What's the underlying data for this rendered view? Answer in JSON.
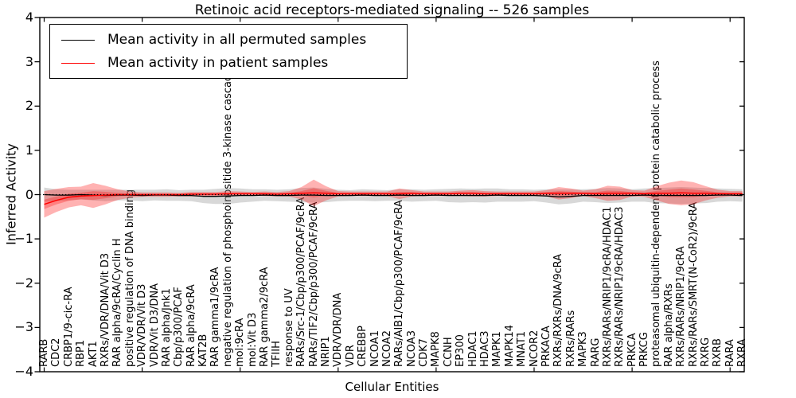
{
  "chart_data": {
    "type": "line",
    "title": "Retinoic acid receptors-mediated signaling -- 526 samples",
    "xlabel": "Cellular Entities",
    "ylabel": "Inferred Activity",
    "ylim": [
      -4,
      4
    ],
    "yticks": [
      4,
      3,
      2,
      1,
      0,
      -1,
      -2,
      -3,
      -4
    ],
    "grid": false,
    "legend_position": "upper left",
    "zero_line": {
      "value": 0,
      "style": "dotted",
      "color": "#000000"
    },
    "entities": [
      "RARB",
      "CDC2",
      "CRBP1/9-cic-RA",
      "RBP1",
      "AKT1",
      "RXRs/VDR/DNA/Vit D3",
      "RAR alpha/9cRA/Cyclin H",
      "positive regulation of DNA binding",
      "VDR/VDR/Vit D3",
      "VDR/Vit D3/DNA",
      "RAR alpha/Jnk1",
      "Cbp/p300/PCAF",
      "RAR alpha/9cRA",
      "KAT2B",
      "RAR gamma1/9cRA",
      "negative regulation of phosphoinositide 3-kinase cascade",
      "mol:9cRA",
      "mol:Vit D3",
      "RAR gamma2/9cRA",
      "TFIIH",
      "response to UV",
      "RARs/Src-1/Cbp/p300/PCAF/9cRA",
      "RARs/TIF2/Cbp/p300/PCAF/9cRA",
      "NRIP1",
      "VDR/VDR/DNA",
      "VDR",
      "CREBBP",
      "NCOA1",
      "NCOA2",
      "RARs/AIB1/Cbp/p300/PCAF/9cRA",
      "NCOA3",
      "CDK7",
      "MAPK8",
      "CCNH",
      "EP300",
      "HDAC1",
      "HDAC3",
      "MAPK1",
      "MAPK14",
      "MNAT1",
      "NCOR2",
      "PRKACA",
      "RXRs/RXRs/DNA/9cRA",
      "RXRs/RARs",
      "MAPK3",
      "RARG",
      "RXRs/RARs/NRIP1/9cRA/HDAC1",
      "RXRs/RARs/NRIP1/9cRA/HDAC3",
      "PRKCA",
      "PRKCG",
      "proteasomal ubiquitin-dependent protein catabolic process",
      "RAR alpha/RXRs",
      "RXRs/RARs/NRIP1/9cRA",
      "RXRs/RARs/SMRT(N-CoR2)/9cRA",
      "RXRG",
      "RXRB",
      "RARA",
      "RXRA"
    ],
    "series": [
      {
        "name": "Mean activity in all permuted samples",
        "color": "#000000",
        "band_color": "#999999",
        "mean": [
          0.0,
          -0.01,
          -0.01,
          0.0,
          -0.01,
          -0.02,
          -0.01,
          -0.01,
          -0.02,
          -0.01,
          -0.01,
          -0.02,
          -0.02,
          -0.04,
          -0.04,
          -0.03,
          -0.02,
          -0.02,
          -0.01,
          -0.02,
          -0.02,
          -0.01,
          -0.01,
          -0.02,
          -0.02,
          -0.02,
          -0.01,
          -0.02,
          -0.02,
          -0.01,
          -0.02,
          -0.02,
          -0.01,
          -0.02,
          -0.02,
          -0.02,
          -0.02,
          -0.01,
          -0.02,
          -0.02,
          -0.02,
          -0.03,
          -0.05,
          -0.04,
          -0.02,
          -0.02,
          -0.02,
          -0.02,
          -0.02,
          -0.01,
          -0.02,
          -0.02,
          -0.02,
          -0.02,
          -0.02,
          -0.01,
          -0.01,
          -0.02
        ],
        "std": [
          0.16,
          0.13,
          0.12,
          0.11,
          0.12,
          0.13,
          0.12,
          0.12,
          0.13,
          0.12,
          0.13,
          0.12,
          0.13,
          0.15,
          0.17,
          0.18,
          0.16,
          0.14,
          0.13,
          0.13,
          0.14,
          0.16,
          0.17,
          0.15,
          0.13,
          0.12,
          0.13,
          0.13,
          0.12,
          0.13,
          0.14,
          0.13,
          0.13,
          0.15,
          0.16,
          0.15,
          0.16,
          0.15,
          0.14,
          0.14,
          0.13,
          0.15,
          0.17,
          0.16,
          0.14,
          0.15,
          0.17,
          0.16,
          0.14,
          0.15,
          0.17,
          0.18,
          0.19,
          0.18,
          0.17,
          0.15,
          0.14,
          0.14
        ]
      },
      {
        "name": "Mean activity in patient samples",
        "color": "#ff0000",
        "band_color": "#ff0000",
        "mean": [
          -0.22,
          -0.13,
          -0.06,
          -0.03,
          -0.02,
          -0.01,
          0.0,
          0.0,
          0.0,
          0.0,
          0.0,
          0.0,
          0.01,
          0.01,
          0.01,
          0.02,
          0.02,
          0.02,
          0.02,
          0.01,
          0.02,
          0.03,
          0.04,
          0.03,
          0.02,
          0.02,
          0.02,
          0.02,
          0.02,
          0.02,
          0.03,
          0.02,
          0.02,
          0.02,
          0.03,
          0.03,
          0.02,
          0.02,
          0.02,
          0.02,
          0.02,
          0.03,
          0.03,
          0.03,
          0.03,
          0.02,
          0.03,
          0.03,
          0.03,
          0.02,
          0.03,
          0.03,
          0.04,
          0.03,
          0.03,
          0.02,
          0.02,
          0.02
        ],
        "std": [
          0.3,
          0.26,
          0.23,
          0.21,
          0.28,
          0.21,
          0.12,
          0.07,
          0.05,
          0.05,
          0.05,
          0.04,
          0.05,
          0.05,
          0.05,
          0.06,
          0.05,
          0.04,
          0.05,
          0.05,
          0.06,
          0.14,
          0.3,
          0.16,
          0.06,
          0.05,
          0.05,
          0.05,
          0.05,
          0.12,
          0.07,
          0.05,
          0.05,
          0.05,
          0.06,
          0.07,
          0.06,
          0.05,
          0.05,
          0.05,
          0.05,
          0.07,
          0.14,
          0.11,
          0.06,
          0.1,
          0.17,
          0.15,
          0.07,
          0.07,
          0.16,
          0.24,
          0.28,
          0.25,
          0.16,
          0.09,
          0.06,
          0.06
        ]
      }
    ]
  }
}
